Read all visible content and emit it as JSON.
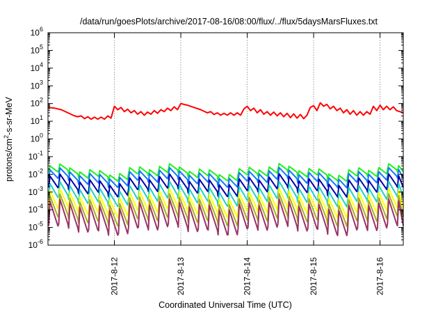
{
  "chart_data": {
    "type": "line",
    "title": "/data/run/goesPlots/archive/2017-08-16/08:00/flux/../flux/5daysMarsFluxes.txt",
    "xlabel": "Coordinated Universal Time (UTC)",
    "ylabel": {
      "pre": "protons/cm",
      "sup": "2",
      "post": "-s-sr-MeV"
    },
    "y_scale": "log",
    "ylim_exponents": [
      -6,
      6
    ],
    "y_ticks": [
      {
        "exp": "-6"
      },
      {
        "exp": "-5"
      },
      {
        "exp": "-4"
      },
      {
        "exp": "-3"
      },
      {
        "exp": "-2"
      },
      {
        "exp": "-1"
      },
      {
        "exp": "0"
      },
      {
        "exp": "1"
      },
      {
        "exp": "2"
      },
      {
        "exp": "3"
      },
      {
        "exp": "4"
      },
      {
        "exp": "5"
      },
      {
        "exp": "6"
      }
    ],
    "xlim_days": [
      0,
      5.35
    ],
    "x_ticks": [
      {
        "label": "2017-8-12",
        "day": 1.0
      },
      {
        "label": "2017-8-13",
        "day": 2.0
      },
      {
        "label": "2017-8-14",
        "day": 3.0
      },
      {
        "label": "2017-8-15",
        "day": 4.0
      },
      {
        "label": "2017-8-16",
        "day": 5.0
      }
    ],
    "grid": true,
    "legend": "none",
    "series": [
      {
        "color": "#ff0000",
        "points": [
          [
            0.0,
            60
          ],
          [
            0.1,
            55
          ],
          [
            0.2,
            45
          ],
          [
            0.3,
            30
          ],
          [
            0.4,
            20
          ],
          [
            0.45,
            18
          ],
          [
            0.5,
            20
          ],
          [
            0.55,
            14
          ],
          [
            0.6,
            18
          ],
          [
            0.65,
            13
          ],
          [
            0.7,
            17
          ],
          [
            0.75,
            13
          ],
          [
            0.8,
            17
          ],
          [
            0.85,
            13
          ],
          [
            0.9,
            20
          ],
          [
            0.95,
            15
          ],
          [
            1.0,
            70
          ],
          [
            1.05,
            45
          ],
          [
            1.1,
            60
          ],
          [
            1.15,
            35
          ],
          [
            1.2,
            48
          ],
          [
            1.25,
            30
          ],
          [
            1.3,
            40
          ],
          [
            1.35,
            25
          ],
          [
            1.4,
            35
          ],
          [
            1.45,
            22
          ],
          [
            1.5,
            33
          ],
          [
            1.55,
            25
          ],
          [
            1.6,
            40
          ],
          [
            1.65,
            28
          ],
          [
            1.7,
            45
          ],
          [
            1.75,
            35
          ],
          [
            1.8,
            55
          ],
          [
            1.85,
            40
          ],
          [
            1.9,
            65
          ],
          [
            1.95,
            45
          ],
          [
            2.0,
            100
          ],
          [
            2.1,
            80
          ],
          [
            2.2,
            60
          ],
          [
            2.3,
            45
          ],
          [
            2.4,
            30
          ],
          [
            2.45,
            35
          ],
          [
            2.5,
            24
          ],
          [
            2.55,
            30
          ],
          [
            2.6,
            22
          ],
          [
            2.65,
            28
          ],
          [
            2.7,
            22
          ],
          [
            2.75,
            30
          ],
          [
            2.8,
            22
          ],
          [
            2.85,
            30
          ],
          [
            2.9,
            22
          ],
          [
            2.95,
            50
          ],
          [
            3.0,
            70
          ],
          [
            3.05,
            40
          ],
          [
            3.1,
            55
          ],
          [
            3.15,
            30
          ],
          [
            3.2,
            45
          ],
          [
            3.25,
            25
          ],
          [
            3.3,
            35
          ],
          [
            3.35,
            22
          ],
          [
            3.4,
            33
          ],
          [
            3.45,
            20
          ],
          [
            3.5,
            30
          ],
          [
            3.55,
            18
          ],
          [
            3.6,
            28
          ],
          [
            3.65,
            16
          ],
          [
            3.7,
            26
          ],
          [
            3.75,
            15
          ],
          [
            3.8,
            24
          ],
          [
            3.85,
            14
          ],
          [
            3.9,
            22
          ],
          [
            3.95,
            60
          ],
          [
            4.0,
            75
          ],
          [
            4.05,
            40
          ],
          [
            4.1,
            110
          ],
          [
            4.15,
            70
          ],
          [
            4.2,
            90
          ],
          [
            4.25,
            50
          ],
          [
            4.3,
            70
          ],
          [
            4.35,
            40
          ],
          [
            4.4,
            55
          ],
          [
            4.45,
            30
          ],
          [
            4.5,
            45
          ],
          [
            4.55,
            25
          ],
          [
            4.6,
            40
          ],
          [
            4.65,
            22
          ],
          [
            4.7,
            35
          ],
          [
            4.75,
            22
          ],
          [
            4.8,
            35
          ],
          [
            4.85,
            25
          ],
          [
            4.9,
            70
          ],
          [
            4.95,
            40
          ],
          [
            5.0,
            80
          ],
          [
            5.05,
            45
          ],
          [
            5.1,
            70
          ],
          [
            5.15,
            45
          ],
          [
            5.2,
            65
          ],
          [
            5.25,
            40
          ],
          [
            5.3,
            35
          ],
          [
            5.35,
            30
          ]
        ]
      },
      {
        "color": "#22ee22",
        "peak": 0.03,
        "base": 0.012,
        "ratio": 2.2
      },
      {
        "color": "#1177ff",
        "peak": 0.018,
        "base": 0.007,
        "ratio": 3
      },
      {
        "color": "#0000aa",
        "peak": 0.008,
        "base": 0.003,
        "ratio": 4.5
      },
      {
        "color": "#22d0c0",
        "peak": 0.003,
        "base": 0.0012,
        "ratio": 6
      },
      {
        "color": "#ffff00",
        "peak": 0.0012,
        "base": 0.0005,
        "ratio": 10
      },
      {
        "color": "#aaaa22",
        "peak": 0.0006,
        "base": 0.00025,
        "ratio": 15
      },
      {
        "color": "#993366",
        "peak": 0.0003,
        "base": 0.00015,
        "ratio": 25
      }
    ]
  }
}
